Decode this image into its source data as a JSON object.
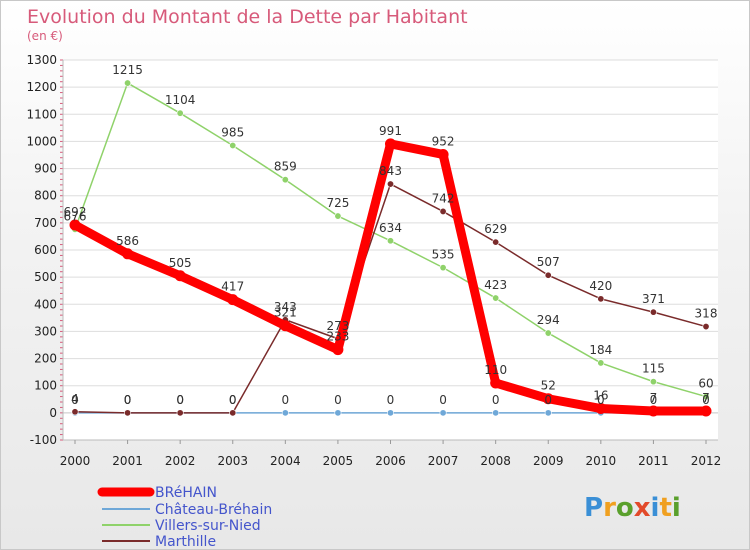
{
  "chart_data": {
    "type": "line",
    "title": "Evolution du Montant de la Dette par Habitant",
    "subtitle": "(en €)",
    "xlabel": "",
    "ylabel": "",
    "categories": [
      "2000",
      "2001",
      "2002",
      "2003",
      "2004",
      "2005",
      "2006",
      "2007",
      "2008",
      "2009",
      "2010",
      "2011",
      "2012"
    ],
    "ylim": [
      -100,
      1300
    ],
    "yticks": [
      -100,
      0,
      100,
      200,
      300,
      400,
      500,
      600,
      700,
      800,
      900,
      1000,
      1100,
      1200,
      1300
    ],
    "series": [
      {
        "name": "BRéHAIN",
        "color": "#ff0000",
        "values": [
          692,
          586,
          505,
          417,
          321,
          233,
          991,
          952,
          110,
          52,
          16,
          7,
          7
        ]
      },
      {
        "name": "Château-Bréhain",
        "color": "#6fa8d8",
        "values": [
          0,
          0,
          0,
          0,
          0,
          0,
          0,
          0,
          0,
          0,
          0,
          0,
          0
        ]
      },
      {
        "name": "Villers-sur-Nied",
        "color": "#8fd26a",
        "values": [
          676,
          1215,
          1104,
          985,
          859,
          725,
          634,
          535,
          423,
          294,
          184,
          115,
          60
        ]
      },
      {
        "name": "Marthille",
        "color": "#7a2b2b",
        "values": [
          4,
          0,
          0,
          0,
          343,
          273,
          843,
          742,
          629,
          507,
          420,
          371,
          318
        ]
      }
    ],
    "legend_position": "bottom-left"
  },
  "watermark": {
    "text": "Proxiti"
  }
}
